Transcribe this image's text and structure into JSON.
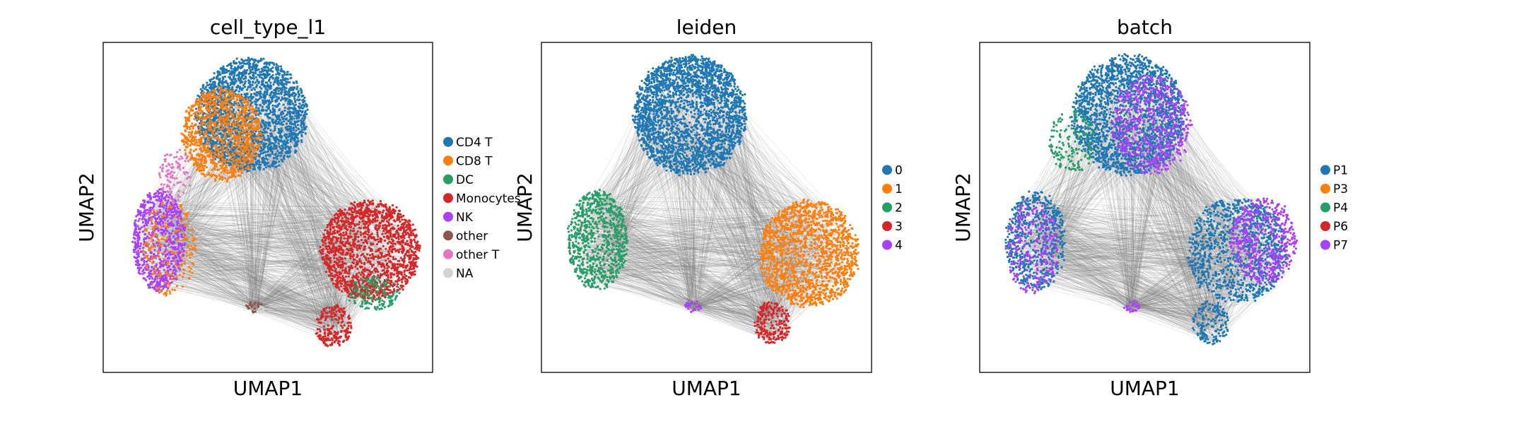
{
  "chart_data": [
    {
      "type": "scatter",
      "title": "cell_type_l1",
      "xlabel": "UMAP1",
      "ylabel": "UMAP2",
      "grid": false,
      "legend_placement": "right",
      "legend": [
        {
          "label": "CD4 T",
          "color": "#1f77b4"
        },
        {
          "label": "CD8 T",
          "color": "#ff7f0e"
        },
        {
          "label": "DC",
          "color": "#279e68"
        },
        {
          "label": "Monocytes",
          "color": "#d62728"
        },
        {
          "label": "NK",
          "color": "#aa40fc"
        },
        {
          "label": "other",
          "color": "#8c564b"
        },
        {
          "label": "other T",
          "color": "#e377c2"
        },
        {
          "label": "NA",
          "color": "#d3d3d3"
        }
      ],
      "point_groups": [
        {
          "label": "CD4 T",
          "region": "top cluster",
          "center": [
            0.45,
            0.78
          ],
          "radius": [
            0.17,
            0.17
          ],
          "share": 0.45
        },
        {
          "label": "CD8 T",
          "region": "top cluster, left part",
          "center": [
            0.36,
            0.72
          ],
          "radius": [
            0.12,
            0.14
          ],
          "share": 0.2
        },
        {
          "label": "NK",
          "region": "left cluster",
          "center": [
            0.17,
            0.4
          ],
          "radius": [
            0.08,
            0.15
          ],
          "share": 0.15
        },
        {
          "label": "CD8 T",
          "region": "left cluster edge",
          "center": [
            0.2,
            0.38
          ],
          "radius": [
            0.08,
            0.15
          ],
          "share": 0.04
        },
        {
          "label": "other T",
          "region": "between top and left cluster",
          "center": [
            0.22,
            0.6
          ],
          "radius": [
            0.05,
            0.08
          ],
          "share": 0.02
        },
        {
          "label": "Monocytes",
          "region": "right cluster",
          "center": [
            0.81,
            0.37
          ],
          "radius": [
            0.15,
            0.15
          ],
          "share": 0.32
        },
        {
          "label": "DC",
          "region": "right cluster lower edge",
          "center": [
            0.82,
            0.24
          ],
          "radius": [
            0.08,
            0.05
          ],
          "share": 0.03
        },
        {
          "label": "Monocytes",
          "region": "small bottom cluster",
          "center": [
            0.7,
            0.14
          ],
          "radius": [
            0.055,
            0.065
          ],
          "share": 0.04
        },
        {
          "label": "other",
          "region": "tiny bottom cluster",
          "center": [
            0.46,
            0.2
          ],
          "radius": [
            0.025,
            0.018
          ],
          "share": 0.005
        },
        {
          "label": "NA",
          "region": "tiny bottom cluster",
          "center": [
            0.48,
            0.19
          ],
          "radius": [
            0.01,
            0.01
          ],
          "share": 0.002
        }
      ]
    },
    {
      "type": "scatter",
      "title": "leiden",
      "xlabel": "UMAP1",
      "ylabel": "UMAP2",
      "grid": false,
      "legend_placement": "right",
      "legend": [
        {
          "label": "0",
          "color": "#1f77b4"
        },
        {
          "label": "1",
          "color": "#ff7f0e"
        },
        {
          "label": "2",
          "color": "#279e68"
        },
        {
          "label": "3",
          "color": "#d62728"
        },
        {
          "label": "4",
          "color": "#aa40fc"
        }
      ],
      "point_groups": [
        {
          "label": "0",
          "region": "top cluster",
          "center": [
            0.45,
            0.78
          ],
          "radius": [
            0.17,
            0.18
          ],
          "share": 0.5
        },
        {
          "label": "2",
          "region": "left cluster",
          "center": [
            0.17,
            0.4
          ],
          "radius": [
            0.09,
            0.15
          ],
          "share": 0.16
        },
        {
          "label": "1",
          "region": "right cluster",
          "center": [
            0.81,
            0.36
          ],
          "radius": [
            0.15,
            0.16
          ],
          "share": 0.3
        },
        {
          "label": "3",
          "region": "small bottom cluster",
          "center": [
            0.7,
            0.15
          ],
          "radius": [
            0.055,
            0.065
          ],
          "share": 0.04
        },
        {
          "label": "4",
          "region": "tiny bottom cluster",
          "center": [
            0.46,
            0.2
          ],
          "radius": [
            0.025,
            0.018
          ],
          "share": 0.005
        }
      ]
    },
    {
      "type": "scatter",
      "title": "batch",
      "xlabel": "UMAP1",
      "ylabel": "UMAP2",
      "grid": false,
      "legend_placement": "right",
      "legend": [
        {
          "label": "P1",
          "color": "#1f77b4"
        },
        {
          "label": "P3",
          "color": "#ff7f0e"
        },
        {
          "label": "P4",
          "color": "#279e68"
        },
        {
          "label": "P6",
          "color": "#d62728"
        },
        {
          "label": "P7",
          "color": "#aa40fc"
        }
      ],
      "point_groups": [
        {
          "label": "P1",
          "region": "top cluster",
          "center": [
            0.45,
            0.78
          ],
          "radius": [
            0.17,
            0.18
          ],
          "share": 0.4
        },
        {
          "label": "P7",
          "region": "top cluster right side",
          "center": [
            0.52,
            0.75
          ],
          "radius": [
            0.12,
            0.15
          ],
          "share": 0.12
        },
        {
          "label": "P4",
          "region": "top cluster left edge",
          "center": [
            0.28,
            0.7
          ],
          "radius": [
            0.07,
            0.1
          ],
          "share": 0.03
        },
        {
          "label": "P1",
          "region": "left cluster",
          "center": [
            0.17,
            0.4
          ],
          "radius": [
            0.09,
            0.15
          ],
          "share": 0.12
        },
        {
          "label": "P7",
          "region": "left cluster",
          "center": [
            0.16,
            0.38
          ],
          "radius": [
            0.08,
            0.14
          ],
          "share": 0.05
        },
        {
          "label": "P1",
          "region": "right cluster",
          "center": [
            0.78,
            0.37
          ],
          "radius": [
            0.15,
            0.16
          ],
          "share": 0.2
        },
        {
          "label": "P7",
          "region": "right cluster right side",
          "center": [
            0.86,
            0.4
          ],
          "radius": [
            0.1,
            0.13
          ],
          "share": 0.1
        },
        {
          "label": "P1",
          "region": "small bottom cluster",
          "center": [
            0.7,
            0.15
          ],
          "radius": [
            0.055,
            0.065
          ],
          "share": 0.03
        },
        {
          "label": "P7",
          "region": "tiny bottom cluster",
          "center": [
            0.46,
            0.2
          ],
          "radius": [
            0.025,
            0.018
          ],
          "share": 0.005
        }
      ]
    }
  ]
}
